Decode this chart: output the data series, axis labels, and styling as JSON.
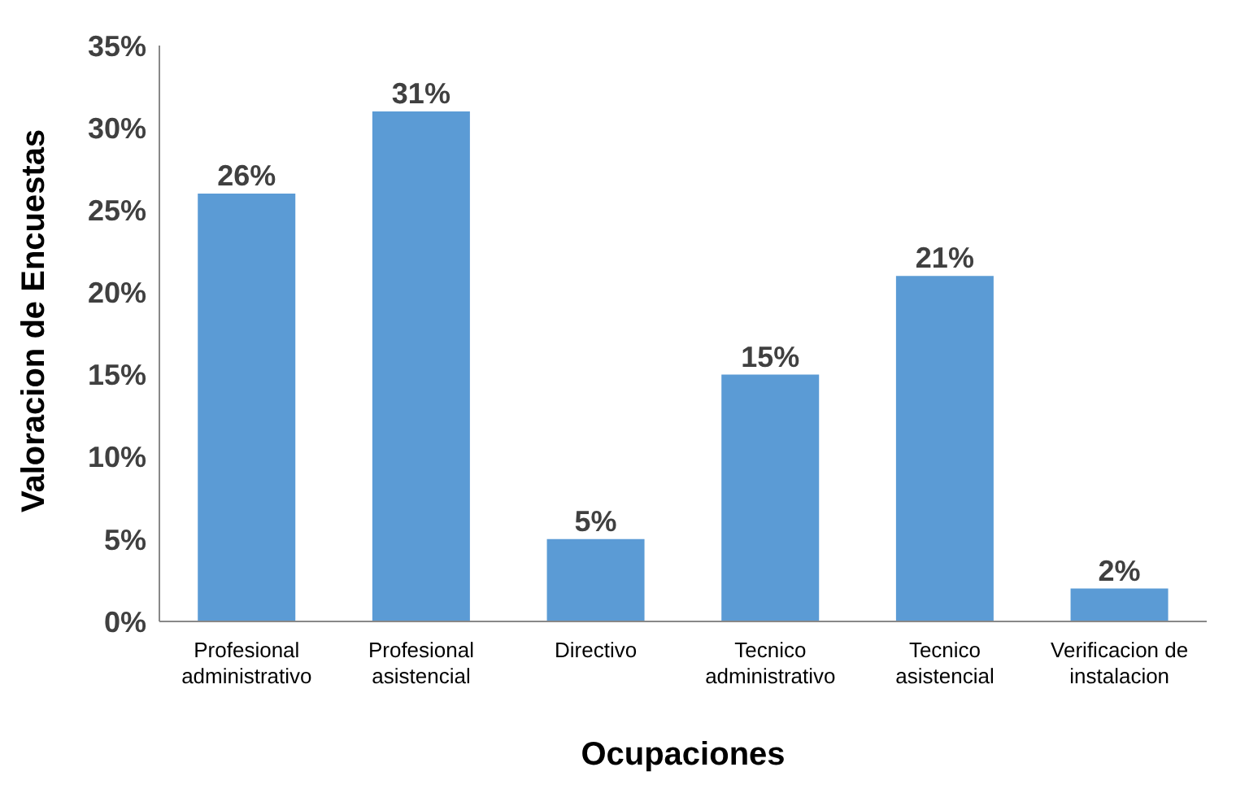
{
  "chart_data": {
    "type": "bar",
    "xlabel": "Ocupaciones",
    "ylabel": "Valoracion de Encuestas",
    "categories": [
      "Profesional administrativo",
      "Profesional asistencial",
      "Directivo",
      "Tecnico administrativo",
      "Tecnico asistencial",
      "Verificacion de instalacion"
    ],
    "values": [
      26,
      31,
      5,
      15,
      21,
      2
    ],
    "value_labels": [
      "26%",
      "31%",
      "5%",
      "15%",
      "21%",
      "2%"
    ],
    "color": "#5b9bd5",
    "ylim": [
      0,
      35
    ],
    "yticks": [
      {
        "value": 0,
        "label": "0%"
      },
      {
        "value": 5,
        "label": "5%"
      },
      {
        "value": 10,
        "label": "10%"
      },
      {
        "value": 15,
        "label": "15%"
      },
      {
        "value": 20,
        "label": "20%"
      },
      {
        "value": 25,
        "label": "25%"
      },
      {
        "value": 30,
        "label": "30%"
      },
      {
        "value": 35,
        "label": "35%"
      }
    ],
    "grid": false,
    "legend": false
  }
}
